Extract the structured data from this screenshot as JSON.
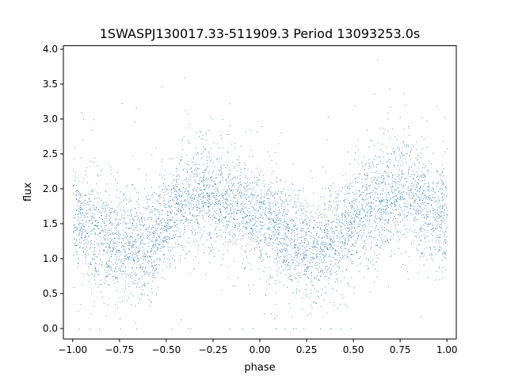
{
  "chart_data": {
    "type": "scatter",
    "title": "1SWASPJ130017.33-511909.3 Period 13093253.0s",
    "xlabel": "phase",
    "ylabel": "flux",
    "xlim": [
      -1.05,
      1.05
    ],
    "ylim": [
      -0.15,
      4.05
    ],
    "x_ticks": [
      -1.0,
      -0.75,
      -0.5,
      -0.25,
      0.0,
      0.25,
      0.5,
      0.75,
      1.0
    ],
    "x_tick_labels": [
      "−1.00",
      "−0.75",
      "−0.50",
      "−0.25",
      "0.00",
      "0.25",
      "0.50",
      "0.75",
      "1.00"
    ],
    "y_ticks": [
      0.0,
      0.5,
      1.0,
      1.5,
      2.0,
      2.5,
      3.0,
      3.5,
      4.0
    ],
    "y_tick_labels": [
      "0.0",
      "0.5",
      "1.0",
      "1.5",
      "2.0",
      "2.5",
      "3.0",
      "3.5",
      "4.0"
    ],
    "grid": false,
    "legend": "none",
    "point_color": "#1f77b4",
    "series": [
      {
        "phase_flux_profile": {
          "x": [
            -1.0,
            -0.9,
            -0.8,
            -0.7,
            -0.6,
            -0.5,
            -0.4,
            -0.3,
            -0.25,
            -0.2,
            -0.1,
            0.0,
            0.1,
            0.2,
            0.3,
            0.4,
            0.5,
            0.6,
            0.7,
            0.75,
            0.8,
            0.9,
            1.0
          ],
          "y": [
            1.55,
            1.4,
            1.25,
            1.15,
            1.3,
            1.55,
            1.8,
            1.95,
            1.95,
            1.9,
            1.75,
            1.55,
            1.4,
            1.25,
            1.15,
            1.3,
            1.55,
            1.8,
            1.95,
            1.95,
            1.9,
            1.75,
            1.55
          ],
          "typical_spread": 0.35,
          "min_flux": 0.0,
          "max_flux": 3.85
        }
      }
    ]
  }
}
